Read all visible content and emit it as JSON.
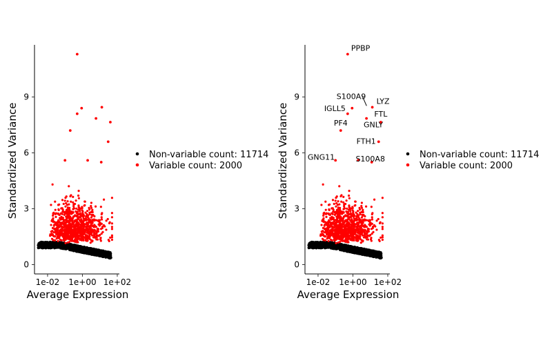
{
  "colors": {
    "nonvariable": "#000000",
    "variable": "#ff0000"
  },
  "legend": {
    "nonvariable_label": "Non-variable count: 11714",
    "variable_label": "Variable count: 2000"
  },
  "chart_data": [
    {
      "type": "scatter",
      "xlabel": "Average Expression",
      "ylabel": "Standardized Variance",
      "xscale": "log",
      "xticks": [
        "1e-02",
        "1e+00",
        "1e+02"
      ],
      "yticks": [
        "0",
        "3",
        "6",
        "9"
      ],
      "ylim": [
        -0.5,
        11.8
      ],
      "series": [
        {
          "name": "Non-variable count: 11714",
          "color": "#000000"
        },
        {
          "name": "Variable count: 2000",
          "color": "#ff0000"
        }
      ],
      "highlighted_points": [
        {
          "x": 0.5,
          "y": 11.3
        },
        {
          "x": 0.9,
          "y": 8.4
        },
        {
          "x": 13,
          "y": 8.45
        },
        {
          "x": 0.5,
          "y": 8.1
        },
        {
          "x": 6,
          "y": 7.85
        },
        {
          "x": 40,
          "y": 7.65
        },
        {
          "x": 0.2,
          "y": 7.2
        },
        {
          "x": 30,
          "y": 6.6
        },
        {
          "x": 0.1,
          "y": 5.6
        },
        {
          "x": 2,
          "y": 5.6
        },
        {
          "x": 12,
          "y": 5.5
        }
      ]
    },
    {
      "type": "scatter",
      "xlabel": "Average Expression",
      "ylabel": "Standardized Variance",
      "xscale": "log",
      "xticks": [
        "1e-02",
        "1e+00",
        "1e+02"
      ],
      "yticks": [
        "0",
        "3",
        "6",
        "9"
      ],
      "ylim": [
        -0.5,
        11.8
      ],
      "labels": [
        {
          "text": "PPBP",
          "x": 0.5,
          "y": 11.3
        },
        {
          "text": "S100A9",
          "x": 8,
          "y": 8.45
        },
        {
          "text": "LYZ",
          "x": 13,
          "y": 8.45
        },
        {
          "text": "IGLL5",
          "x": 0.5,
          "y": 8.1
        },
        {
          "text": "FTL",
          "x": 40,
          "y": 7.65
        },
        {
          "text": "PF4",
          "x": 0.2,
          "y": 7.2
        },
        {
          "text": "GNLY",
          "x": 6,
          "y": 7.85
        },
        {
          "text": "FTH1",
          "x": 30,
          "y": 6.6
        },
        {
          "text": "GNG11",
          "x": 0.1,
          "y": 5.6
        },
        {
          "text": "S100A8",
          "x": 12,
          "y": 5.5
        }
      ]
    }
  ]
}
